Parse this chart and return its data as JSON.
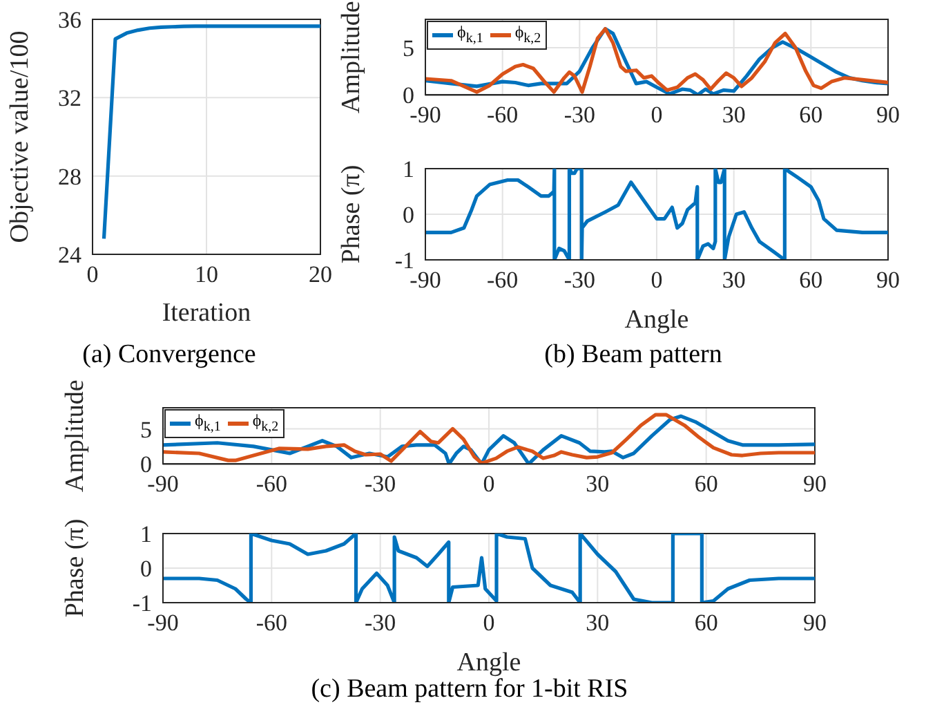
{
  "chart_data": [
    {
      "type": "line",
      "title": "(a) Convergence",
      "xlabel": "Iteration",
      "ylabel": "Objective value/100",
      "x": [
        1,
        2,
        3,
        4,
        5,
        6,
        7,
        8,
        9,
        10,
        11,
        12,
        13,
        14,
        15,
        16,
        17,
        18,
        19,
        20
      ],
      "series": [
        {
          "color": "#0072bd",
          "values": [
            24.8,
            35.0,
            35.3,
            35.45,
            35.55,
            35.6,
            35.62,
            35.64,
            35.65,
            35.65,
            35.65,
            35.65,
            35.65,
            35.65,
            35.65,
            35.65,
            35.65,
            35.65,
            35.65,
            35.65
          ]
        }
      ],
      "xlim": [
        0,
        20
      ],
      "xticks": [
        0,
        10,
        20
      ],
      "ylim": [
        24,
        36
      ],
      "yticks": [
        24,
        28,
        32,
        36
      ],
      "grid": true
    },
    {
      "type": "line",
      "ylabel": "Amplitude",
      "legend": "top left",
      "xlim": [
        -90,
        90
      ],
      "xticks": [
        -90,
        -60,
        -30,
        0,
        30,
        60,
        90
      ],
      "ylim": [
        0,
        8
      ],
      "yticks": [
        0,
        5
      ],
      "grid": true,
      "series": [
        {
          "name": "ϕ$_{k,1}$",
          "color": "#0072bd",
          "x": [
            -90,
            -80,
            -70,
            -60,
            -55,
            -50,
            -45,
            -40,
            -35,
            -30,
            -25,
            -20,
            -17,
            -12,
            -8,
            -4,
            0,
            5,
            10,
            13,
            16,
            19,
            22,
            26,
            30,
            35,
            40,
            45,
            49,
            55,
            60,
            65,
            70,
            75,
            80,
            85,
            90
          ],
          "values": [
            1.5,
            1.2,
            0.9,
            1.4,
            1.3,
            1.0,
            1.2,
            1.2,
            1.2,
            2.5,
            5.0,
            7.0,
            6.5,
            3.5,
            1.2,
            1.4,
            0.8,
            0.1,
            0.6,
            0.5,
            0.0,
            0.6,
            0.1,
            0.5,
            0.4,
            2.0,
            3.8,
            5.0,
            5.6,
            4.8,
            4.0,
            3.2,
            2.4,
            1.8,
            1.5,
            1.3,
            1.2
          ]
        },
        {
          "name": "ϕ$_{k,2}$",
          "color": "#d95319",
          "x": [
            -90,
            -80,
            -70,
            -65,
            -60,
            -55,
            -52,
            -48,
            -44,
            -40,
            -36,
            -34,
            -32,
            -29,
            -26,
            -23,
            -20,
            -17,
            -14,
            -12,
            -8,
            -5,
            -2,
            1,
            4,
            8,
            12,
            15,
            18,
            21,
            24,
            27,
            30,
            33,
            37,
            42,
            46,
            50,
            54,
            58,
            61,
            64,
            68,
            73,
            80,
            90
          ],
          "values": [
            1.7,
            1.5,
            0.3,
            1.0,
            2.2,
            3.0,
            3.2,
            2.8,
            1.5,
            0.3,
            1.8,
            2.4,
            2.0,
            0.3,
            3.0,
            6.0,
            7.0,
            5.5,
            3.0,
            2.5,
            2.6,
            1.8,
            2.0,
            1.2,
            0.5,
            0.8,
            1.8,
            2.2,
            1.6,
            0.6,
            1.5,
            2.3,
            1.8,
            0.9,
            1.8,
            3.5,
            5.5,
            6.5,
            5.0,
            2.5,
            1.0,
            0.7,
            1.4,
            1.8,
            1.6,
            1.3
          ]
        }
      ]
    },
    {
      "type": "line",
      "title": "(b) Beam pattern",
      "xlabel": "Angle",
      "ylabel": "Phase (π)",
      "xlim": [
        -90,
        90
      ],
      "xticks": [
        -90,
        -60,
        -30,
        0,
        30,
        60,
        90
      ],
      "ylim": [
        -1,
        1
      ],
      "yticks": [
        -1,
        0,
        1
      ],
      "grid": true,
      "series": [
        {
          "color": "#0072bd",
          "x": [
            -90,
            -80,
            -75,
            -72,
            -70,
            -65,
            -58,
            -54,
            -50,
            -45,
            -42,
            -40,
            -39.8,
            -39.8,
            -38,
            -36,
            -34,
            -34,
            -33,
            -32,
            -31,
            -29.2,
            -29.2,
            -29,
            -27,
            -20,
            -15,
            -10,
            -5,
            0,
            3,
            6,
            8,
            10,
            12,
            15,
            15.8,
            15.8,
            18,
            20,
            22,
            22.8,
            22.8,
            24,
            25,
            26.4,
            26.4,
            28,
            31,
            34,
            37,
            40,
            45,
            49.8,
            49.8,
            55,
            60,
            63,
            65,
            70,
            80,
            90
          ],
          "values": [
            -0.4,
            -0.4,
            -0.3,
            0.1,
            0.4,
            0.65,
            0.75,
            0.75,
            0.6,
            0.4,
            0.4,
            0.5,
            1.0,
            -1.0,
            -0.75,
            -0.8,
            -1.0,
            1.0,
            0.9,
            0.9,
            1.0,
            1.0,
            -1.0,
            -0.3,
            -0.15,
            0.05,
            0.2,
            0.7,
            0.3,
            -0.1,
            -0.1,
            0.15,
            -0.3,
            -0.2,
            0.1,
            0.25,
            0.6,
            -1.0,
            -0.7,
            -0.65,
            -0.75,
            -0.6,
            1.0,
            0.7,
            0.7,
            1.0,
            -1.0,
            -0.5,
            0.0,
            0.05,
            -0.3,
            -0.6,
            -0.8,
            -1.0,
            1.0,
            0.8,
            0.6,
            0.3,
            -0.1,
            -0.35,
            -0.4,
            -0.4
          ]
        }
      ]
    },
    {
      "type": "line",
      "ylabel": "Amplitude",
      "legend": "top left",
      "xlim": [
        -90,
        90
      ],
      "xticks": [
        -90,
        -60,
        -30,
        0,
        30,
        60,
        90
      ],
      "ylim": [
        0,
        8
      ],
      "yticks": [
        0,
        5
      ],
      "grid": true,
      "series": [
        {
          "name": "ϕ$_{k,1}$",
          "color": "#0072bd",
          "x": [
            -90,
            -75,
            -65,
            -60,
            -55,
            -50,
            -46,
            -42,
            -38,
            -33,
            -28,
            -24,
            -20,
            -15,
            -12,
            -11,
            -9,
            -7,
            -5,
            -2,
            0,
            4,
            7,
            11,
            15,
            20,
            25,
            28,
            32,
            34,
            37,
            40,
            45,
            50,
            53,
            57,
            62,
            66,
            70,
            80,
            90
          ],
          "values": [
            2.7,
            3.0,
            2.5,
            2.0,
            1.5,
            2.5,
            3.3,
            2.5,
            0.9,
            1.5,
            1.0,
            2.5,
            2.7,
            2.7,
            1.5,
            0.0,
            1.5,
            2.5,
            2.0,
            0.0,
            2.0,
            4.0,
            3.0,
            0.0,
            2.0,
            4.0,
            3.0,
            1.8,
            1.7,
            1.8,
            0.9,
            1.5,
            4.0,
            6.3,
            6.8,
            6.0,
            4.5,
            3.3,
            2.7,
            2.7,
            2.8
          ]
        },
        {
          "name": "ϕ$_{k,2}$",
          "color": "#d95319",
          "x": [
            -90,
            -80,
            -72,
            -70,
            -65,
            -58,
            -50,
            -45,
            -40,
            -37,
            -34,
            -30,
            -27,
            -23,
            -19,
            -16,
            -14,
            -10,
            -7,
            -4,
            -2,
            2,
            5,
            8,
            12,
            15,
            18,
            20,
            23,
            27,
            30,
            34,
            38,
            42,
            46,
            49,
            54,
            58,
            62,
            67,
            70,
            75,
            80,
            90
          ],
          "values": [
            1.7,
            1.5,
            0.5,
            0.5,
            1.2,
            2.2,
            2.1,
            2.5,
            2.7,
            1.8,
            1.3,
            1.4,
            0.4,
            2.5,
            4.6,
            3.2,
            3.0,
            5.0,
            3.5,
            1.0,
            0.1,
            0.8,
            1.8,
            2.4,
            1.8,
            0.8,
            1.2,
            1.7,
            1.3,
            0.9,
            1.0,
            1.6,
            3.5,
            5.5,
            7.0,
            7.0,
            5.5,
            3.8,
            2.3,
            1.3,
            1.2,
            1.5,
            1.6,
            1.6
          ]
        }
      ]
    },
    {
      "type": "line",
      "title": "(c) Beam pattern for 1-bit RIS",
      "xlabel": "Angle",
      "ylabel": "Phase (π)",
      "xlim": [
        -90,
        90
      ],
      "xticks": [
        -90,
        -60,
        -30,
        0,
        30,
        60,
        90
      ],
      "ylim": [
        -1,
        1
      ],
      "yticks": [
        -1,
        0,
        1
      ],
      "grid": true,
      "series": [
        {
          "color": "#0072bd",
          "x": [
            -90,
            -80,
            -75,
            -70,
            -67,
            -65.7,
            -65.7,
            -60,
            -55,
            -50,
            -45,
            -40,
            -36.7,
            -36.7,
            -35,
            -31,
            -28,
            -26.1,
            -26.1,
            -25,
            -20,
            -17,
            -14,
            -11.1,
            -11.1,
            -10,
            -3,
            -2,
            -1,
            2.1,
            2.1,
            5,
            10,
            12,
            14,
            17,
            23,
            25.2,
            25.2,
            30,
            35,
            40,
            45,
            50.8,
            50.8,
            58.8,
            58.8,
            62,
            66,
            72,
            80,
            90
          ],
          "values": [
            -0.3,
            -0.3,
            -0.35,
            -0.6,
            -0.9,
            -1.0,
            1.0,
            0.8,
            0.7,
            0.4,
            0.5,
            0.7,
            1.0,
            -1.0,
            -0.6,
            -0.15,
            -0.5,
            -1.0,
            0.9,
            0.5,
            0.3,
            0.05,
            0.4,
            0.75,
            -1.0,
            -0.55,
            -0.5,
            0.3,
            -0.6,
            -0.95,
            1.0,
            0.9,
            0.85,
            0.0,
            -0.2,
            -0.5,
            -0.7,
            -1.0,
            1.0,
            0.4,
            -0.1,
            -0.9,
            -1.0,
            -1.0,
            1.0,
            1.0,
            -1.0,
            -0.95,
            -0.6,
            -0.35,
            -0.3,
            -0.3
          ]
        }
      ]
    }
  ]
}
